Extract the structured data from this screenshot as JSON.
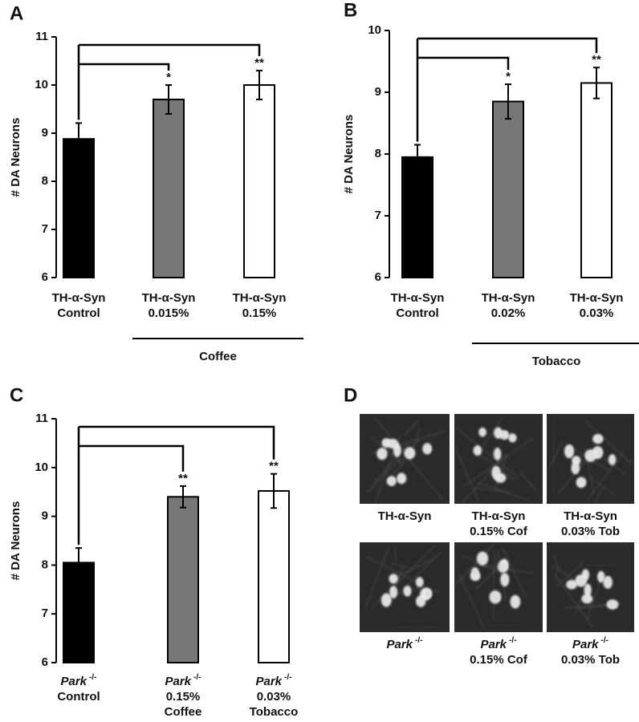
{
  "chart_data": [
    {
      "type": "bar",
      "panel": "A",
      "ylabel": "# DA Neurons",
      "ylim": [
        6,
        11
      ],
      "yticks": [
        6,
        7,
        8,
        9,
        10,
        11
      ],
      "categories": [
        {
          "name": "TH-α-Syn",
          "lines": [
            "Control"
          ]
        },
        {
          "name": "TH-α-Syn",
          "lines": [
            "0.015%"
          ]
        },
        {
          "name": "TH-α-Syn",
          "lines": [
            "0.15%"
          ]
        }
      ],
      "values": [
        8.88,
        9.7,
        10.0
      ],
      "errors": [
        0.33,
        0.3,
        0.3
      ],
      "colors": [
        "#000000",
        "#777777",
        "#ffffff"
      ],
      "significance": [
        null,
        "*",
        "**"
      ],
      "group_label": "Coffee"
    },
    {
      "type": "bar",
      "panel": "B",
      "ylabel": "# DA Neurons",
      "ylim": [
        6,
        10
      ],
      "yticks": [
        6,
        7,
        8,
        9,
        10
      ],
      "categories": [
        {
          "name": "TH-α-Syn",
          "lines": [
            "Control"
          ]
        },
        {
          "name": "TH-α-Syn",
          "lines": [
            "0.02%"
          ]
        },
        {
          "name": "TH-α-Syn",
          "lines": [
            "0.03%"
          ]
        }
      ],
      "values": [
        7.95,
        8.85,
        9.15
      ],
      "errors": [
        0.2,
        0.28,
        0.25
      ],
      "colors": [
        "#000000",
        "#777777",
        "#ffffff"
      ],
      "significance": [
        null,
        "*",
        "**"
      ],
      "group_label": "Tobacco"
    },
    {
      "type": "bar",
      "panel": "C",
      "ylabel": "# DA Neurons",
      "ylim": [
        6,
        11
      ],
      "yticks": [
        6,
        7,
        8,
        9,
        10,
        11
      ],
      "categories": [
        {
          "name": "Park",
          "sup": "-/-",
          "lines": [
            "Control"
          ]
        },
        {
          "name": "Park",
          "sup": "-/-",
          "lines": [
            "0.15%",
            "Coffee"
          ]
        },
        {
          "name": "Park",
          "sup": "-/-",
          "lines": [
            "0.03%",
            "Tobacco"
          ]
        }
      ],
      "values": [
        8.05,
        9.4,
        9.52
      ],
      "errors": [
        0.3,
        0.22,
        0.35
      ],
      "colors": [
        "#000000",
        "#777777",
        "#ffffff"
      ],
      "significance": [
        null,
        "**",
        "**"
      ]
    }
  ],
  "panel_d": {
    "panel": "D",
    "images": [
      {
        "name": "TH-α-Syn",
        "lines": []
      },
      {
        "name": "TH-α-Syn",
        "lines": [
          "0.15% Cof"
        ]
      },
      {
        "name": "TH-α-Syn",
        "lines": [
          "0.03% Tob"
        ]
      },
      {
        "name": "Park",
        "sup": "-/-",
        "lines": []
      },
      {
        "name": "Park",
        "sup": "-/-",
        "lines": [
          "0.15% Cof"
        ]
      },
      {
        "name": "Park",
        "sup": "-/-",
        "lines": [
          "0.03% Tob"
        ]
      }
    ]
  }
}
